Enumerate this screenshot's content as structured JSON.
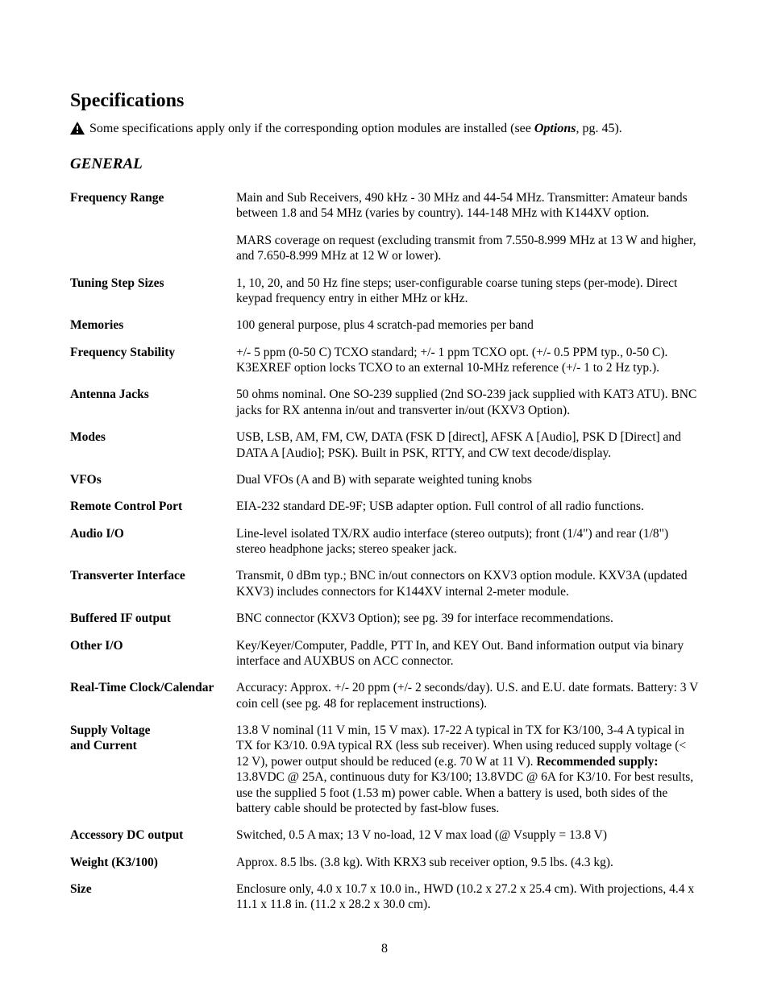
{
  "title": "Specifications",
  "note_prefix": "Some specifications apply only if the corresponding option modules are installed (see ",
  "note_options": "Options",
  "note_suffix": ", pg. 45).",
  "section": "GENERAL",
  "page_number": "8",
  "rows": [
    {
      "label": "Frequency Range",
      "value": "Main and Sub Receivers, 490 kHz - 30 MHz and 44-54 MHz. Transmitter: Amateur bands between 1.8 and 54 MHz (varies by country). 144-148 MHz with K144XV option."
    },
    {
      "label": "",
      "value": "MARS coverage on request (excluding transmit from 7.550-8.999 MHz at 13 W and higher, and 7.650-8.999 MHz at 12 W or lower)."
    },
    {
      "label": "Tuning Step Sizes",
      "value": "1, 10, 20, and 50 Hz fine steps; user-configurable coarse tuning steps (per-mode). Direct keypad frequency entry in either MHz or kHz."
    },
    {
      "label": "Memories",
      "value": "100 general purpose, plus 4 scratch-pad memories per band"
    },
    {
      "label": "Frequency Stability",
      "value": "+/- 5 ppm (0-50 C) TCXO standard; +/- 1 ppm TCXO opt. (+/- 0.5 PPM typ., 0-50 C). K3EXREF option locks TCXO to an external 10-MHz reference (+/- 1 to 2 Hz typ.)."
    },
    {
      "label": "Antenna Jacks",
      "value": "50 ohms nominal. One SO-239 supplied (2nd SO-239 jack supplied with KAT3 ATU). BNC jacks for RX antenna in/out and transverter in/out (KXV3 Option)."
    },
    {
      "label": "Modes",
      "value": "USB, LSB, AM, FM, CW, DATA (FSK D [direct], AFSK A [Audio], PSK D [Direct] and DATA A [Audio]; PSK).  Built in PSK, RTTY, and CW text decode/display."
    },
    {
      "label": "VFOs",
      "value": "Dual VFOs (A and B) with separate weighted tuning knobs"
    },
    {
      "label": "Remote Control Port",
      "value": "EIA-232 standard DE-9F; USB adapter option. Full control of all radio functions."
    },
    {
      "label": "Audio I/O",
      "value": "Line-level isolated TX/RX audio interface (stereo outputs); front (1/4\") and rear (1/8\") stereo headphone jacks; stereo speaker jack."
    },
    {
      "label": "Transverter Interface",
      "value": "Transmit, 0 dBm typ.; BNC in/out connectors on KXV3 option module. KXV3A (updated KXV3) includes connectors for K144XV internal 2-meter module."
    },
    {
      "label": "Buffered IF output",
      "value": "BNC connector (KXV3 Option); see pg. 39 for interface recommendations."
    },
    {
      "label": "Other I/O",
      "value": "Key/Keyer/Computer, Paddle, PTT In, and KEY Out. Band information output via binary interface and AUXBUS on ACC connector."
    },
    {
      "label": "Real-Time Clock/Calendar",
      "value": "Accuracy:  Approx. +/- 20 ppm (+/- 2 seconds/day). U.S. and E.U. date formats. Battery: 3 V coin cell (see pg. 48 for replacement instructions)."
    },
    {
      "label": "Supply Voltage\nand Current",
      "value_pre": "13.8 V nominal (11 V min, 15 V max). 17-22 A typical in TX for K3/100, 3-4 A typical in TX for K3/10. 0.9A typical RX (less sub receiver). When using reduced supply voltage (< 12 V), power output should be reduced (e.g. 70 W at 11 V). ",
      "value_bold": "Recommended supply:",
      "value_post": " 13.8VDC @ 25A, continuous duty for K3/100; 13.8VDC @ 6A for K3/10. For best results, use the supplied 5 foot (1.53 m) power cable. When a battery is used, both sides of the battery cable should be protected by fast-blow fuses."
    },
    {
      "label": "Accessory DC output",
      "value": "Switched, 0.5 A max; 13 V no-load, 12 V max load (@ Vsupply = 13.8 V)"
    },
    {
      "label": "Weight (K3/100)",
      "value": "Approx. 8.5 lbs. (3.8 kg). With KRX3 sub receiver option, 9.5 lbs. (4.3 kg)."
    },
    {
      "label": "Size",
      "value": "Enclosure only, 4.0 x 10.7 x 10.0 in.,  HWD (10.2 x 27.2 x 25.4 cm). With projections, 4.4 x 11.1 x 11.8 in. (11.2 x 28.2 x 30.0 cm)."
    }
  ]
}
